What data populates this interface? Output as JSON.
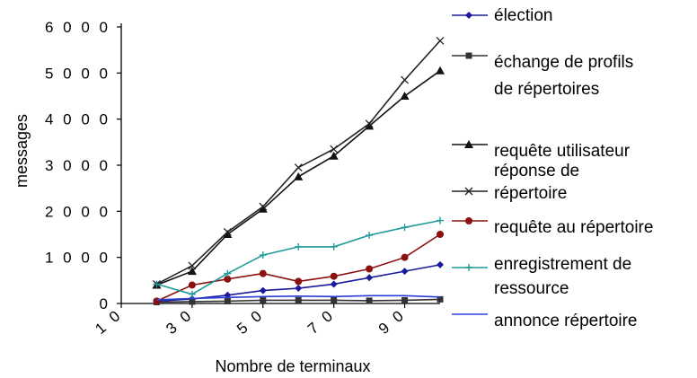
{
  "chart_data": {
    "type": "line",
    "title": "",
    "xlabel": "Nombre de terminaux",
    "ylabel": "messages",
    "x": [
      20,
      30,
      40,
      50,
      60,
      70,
      80,
      90,
      100
    ],
    "xticks": [
      10,
      30,
      50,
      70,
      90
    ],
    "xtick_labels": [
      "1 0",
      "3 0",
      "5 0",
      "7 0",
      "9 0"
    ],
    "xlim": [
      10,
      100
    ],
    "yticks": [
      0,
      1000,
      2000,
      3000,
      4000,
      5000,
      6000
    ],
    "ytick_labels": [
      "0",
      "1 0 0 0",
      "2 0 0 0",
      "3 0 0 0",
      "4 0 0 0",
      "5 0 0 0",
      "6 0 0 0"
    ],
    "ylim": [
      0,
      6000
    ],
    "grid": false,
    "legend_position": "right",
    "series": [
      {
        "name": "élection",
        "name_lines": [
          "élection"
        ],
        "color": "#1a1a9c",
        "marker": "diamond",
        "values": [
          50,
          100,
          180,
          280,
          330,
          420,
          560,
          700,
          840
        ]
      },
      {
        "name": "échange de profils de répertoires",
        "name_lines": [
          "échange de profils",
          "de répertoires"
        ],
        "color": "#333333",
        "marker": "square",
        "values": [
          30,
          40,
          50,
          70,
          70,
          70,
          60,
          70,
          90
        ]
      },
      {
        "name": "requête utilisateur",
        "name_lines": [
          "requête utilisateur"
        ],
        "color": "#111111",
        "marker": "triangle",
        "values": [
          400,
          700,
          1500,
          2050,
          2750,
          3200,
          3850,
          4500,
          5050
        ]
      },
      {
        "name": "réponse de répertoire",
        "name_lines": [
          "réponse de",
          "répertoire"
        ],
        "color": "#222222",
        "marker": "x",
        "values": [
          420,
          820,
          1550,
          2100,
          2950,
          3350,
          3900,
          4850,
          5700
        ]
      },
      {
        "name": "requête au répertoire",
        "name_lines": [
          "requête au répertoire"
        ],
        "color": "#8b1010",
        "marker": "circle",
        "values": [
          50,
          400,
          530,
          650,
          480,
          590,
          750,
          1000,
          1500
        ]
      },
      {
        "name": "enregistrement de ressource",
        "name_lines": [
          "enregistrement de",
          "ressource"
        ],
        "color": "#1f9a9a",
        "marker": "plus",
        "values": [
          420,
          200,
          650,
          1050,
          1230,
          1230,
          1480,
          1650,
          1800
        ]
      },
      {
        "name": "annonce répertoire",
        "name_lines": [
          "annonce répertoire"
        ],
        "color": "#2a3fd6",
        "marker": "none",
        "values": [
          80,
          110,
          130,
          150,
          160,
          150,
          170,
          170,
          140
        ]
      }
    ]
  }
}
